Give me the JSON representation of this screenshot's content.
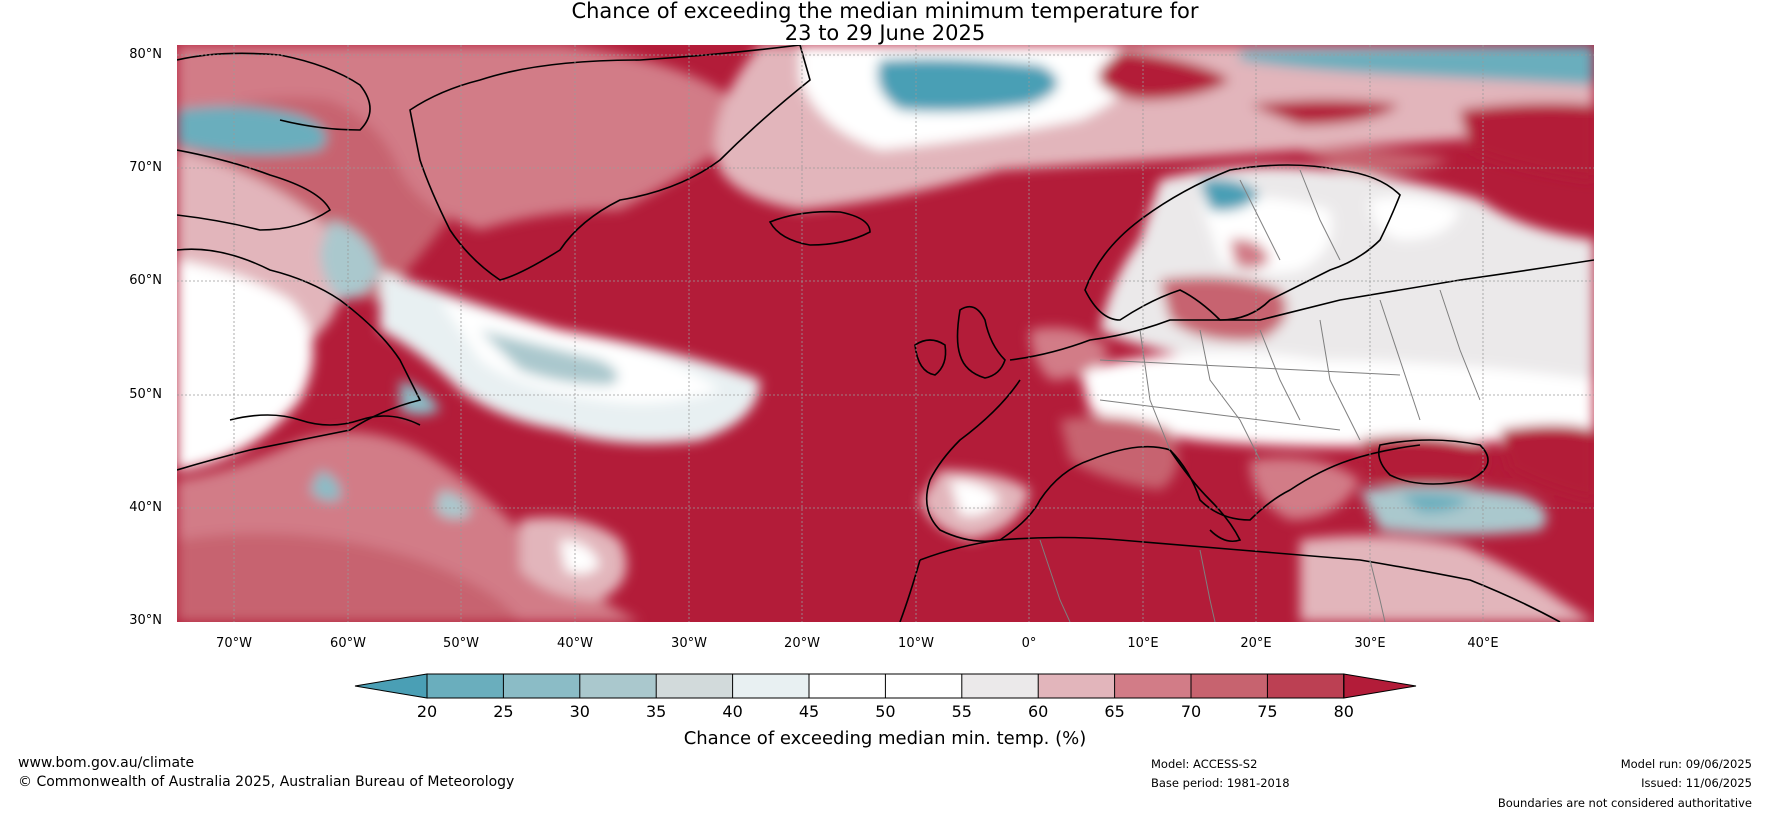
{
  "title": {
    "line1": "Chance of exceeding the median minimum temperature for",
    "line2": "23 to 29 June 2025"
  },
  "map": {
    "type": "contour-map",
    "region": "North Atlantic and Europe",
    "lat_labels": [
      "80°N",
      "70°N",
      "60°N",
      "50°N",
      "40°N",
      "30°N"
    ],
    "lon_labels": [
      "70°W",
      "60°W",
      "50°W",
      "40°W",
      "30°W",
      "20°W",
      "10°W",
      "0°",
      "10°E",
      "20°E",
      "30°E",
      "40°E"
    ],
    "colors": {
      "below_20": "#4a9fb5",
      "20_25": "#6aaebd",
      "25_30": "#8bbcc6",
      "30_35": "#aac8cd",
      "35_40": "#d2dadb",
      "40_45": "#e8f0f2",
      "45_50": "#ffffff",
      "50_55": "#ffffff",
      "55_60": "#ebe9ea",
      "60_65": "#e2b5bb",
      "65_70": "#d27c87",
      "70_75": "#c7636f",
      "75_80": "#bc4053",
      "above_80": "#b31c39",
      "coast": "#000000",
      "borders": "#808080"
    }
  },
  "colorbar": {
    "ticks": [
      "20",
      "25",
      "30",
      "35",
      "40",
      "45",
      "50",
      "55",
      "60",
      "65",
      "70",
      "75",
      "80"
    ],
    "label": "Chance of exceeding median min. temp. (%)"
  },
  "footer": {
    "url": "www.bom.gov.au/climate",
    "copyright": "© Commonwealth of Australia 2025, Australian Bureau of Meteorology",
    "model": "Model: ACCESS-S2",
    "base_period": "Base period: 1981-2018",
    "model_run": "Model run: 09/06/2025",
    "issued": "Issued: 11/06/2025",
    "disclaimer": "Boundaries are not considered authoritative"
  }
}
